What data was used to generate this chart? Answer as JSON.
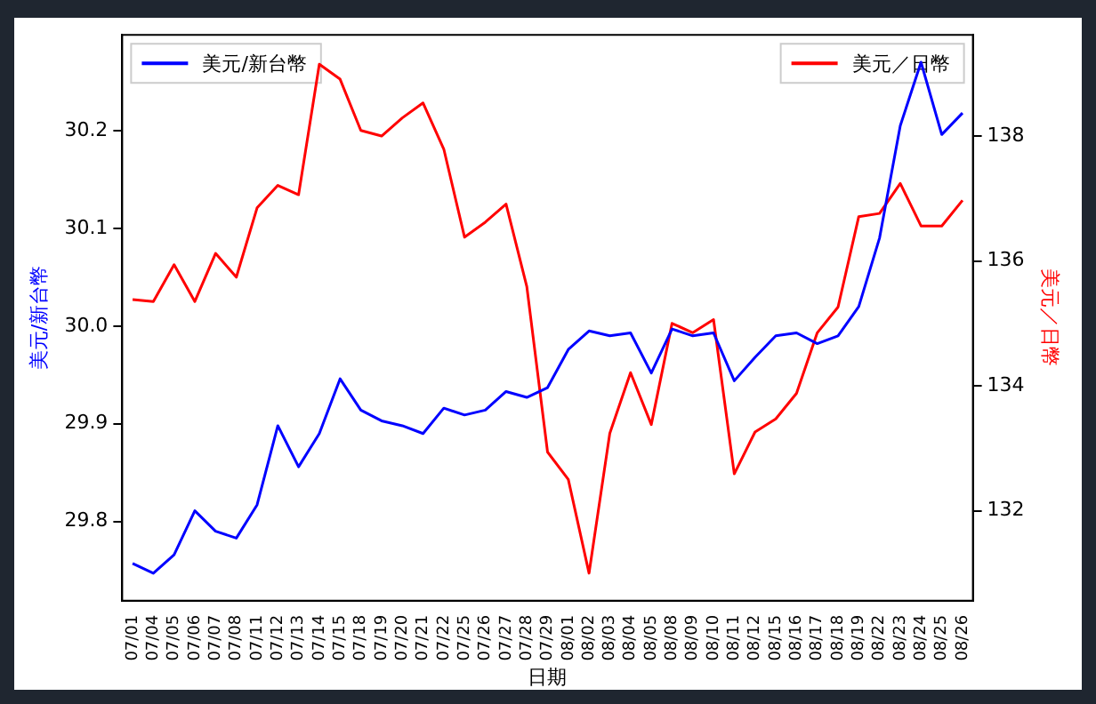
{
  "chart_data": {
    "type": "line",
    "xlabel": "日期",
    "ylabel": "美元/新台幣",
    "y2label": "美元／日幣",
    "categories": [
      "07/01",
      "07/04",
      "07/05",
      "07/06",
      "07/07",
      "07/08",
      "07/11",
      "07/12",
      "07/13",
      "07/14",
      "07/15",
      "07/18",
      "07/19",
      "07/20",
      "07/21",
      "07/22",
      "07/25",
      "07/26",
      "07/27",
      "07/28",
      "07/29",
      "08/01",
      "08/02",
      "08/03",
      "08/04",
      "08/05",
      "08/08",
      "08/09",
      "08/10",
      "08/11",
      "08/12",
      "08/15",
      "08/16",
      "08/17",
      "08/18",
      "08/19",
      "08/22",
      "08/23",
      "08/24",
      "08/25",
      "08/26"
    ],
    "series": [
      {
        "name": "美元/新台幣",
        "color": "#0000ff",
        "values": [
          29.757,
          29.747,
          29.766,
          29.811,
          29.79,
          29.783,
          29.817,
          29.898,
          29.856,
          29.89,
          29.946,
          29.914,
          29.903,
          29.898,
          29.89,
          29.916,
          29.909,
          29.914,
          29.933,
          29.927,
          29.937,
          29.976,
          29.995,
          29.99,
          29.993,
          29.952,
          29.997,
          29.99,
          29.993,
          29.944,
          29.968,
          29.99,
          29.993,
          29.982,
          29.99,
          30.02,
          30.09,
          30.205,
          30.27,
          30.196,
          30.218
        ]
      },
      {
        "name": "美元／日幣",
        "color": "#ff0000",
        "axis": "y2",
        "values": [
          135.38,
          135.35,
          135.94,
          135.35,
          136.12,
          135.74,
          136.85,
          137.21,
          137.06,
          139.15,
          138.91,
          138.09,
          138.0,
          138.29,
          138.53,
          137.79,
          136.38,
          136.62,
          136.91,
          135.59,
          132.94,
          132.5,
          131.0,
          133.24,
          134.21,
          133.38,
          135.0,
          134.85,
          135.06,
          132.59,
          133.26,
          133.47,
          133.88,
          134.85,
          135.26,
          136.71,
          136.76,
          137.24,
          136.56,
          136.56,
          136.97
        ]
      }
    ],
    "ylim": [
      29.719,
      30.298
    ],
    "yticks": [
      29.8,
      29.9,
      {
        "value": 30.0,
        "label": "30.0"
      },
      30.1,
      30.2
    ],
    "y2lim": [
      130.56,
      139.62
    ],
    "y2ticks": [
      132,
      134,
      136,
      138
    ],
    "grid": false,
    "legend": "top",
    "marker": "none",
    "line_style": "solid"
  }
}
